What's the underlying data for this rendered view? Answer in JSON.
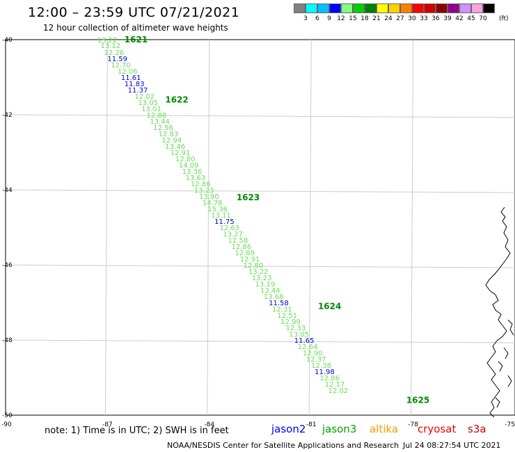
{
  "header": {
    "title": "12:00 – 23:59 UTC 07/21/2021",
    "subtitle": "12 hour collection of altimeter wave heights"
  },
  "colorbar": {
    "labels": [
      "3",
      "6",
      "9",
      "12",
      "15",
      "18",
      "21",
      "24",
      "27",
      "30",
      "33",
      "36",
      "39",
      "42",
      "45",
      "70"
    ],
    "unit": "(ft)",
    "colors": [
      "#808080",
      "#00ffff",
      "#00c0ff",
      "#0000ff",
      "#80ff80",
      "#00d000",
      "#008000",
      "#ffff00",
      "#ffd000",
      "#ff8000",
      "#ff0000",
      "#d00000",
      "#900000",
      "#900090",
      "#d090ff",
      "#ffa0e0",
      "#000000"
    ]
  },
  "map": {
    "lat_labels": [
      "-40",
      "-42",
      "-44",
      "-46",
      "-48",
      "-50"
    ],
    "lon_labels": [
      "-90",
      "-87",
      "-84",
      "-81",
      "-78",
      "-75"
    ],
    "hour_labels": [
      {
        "text": "1621",
        "lat": -40.0,
        "lon": -86.5
      },
      {
        "text": "1622",
        "lat": -41.6,
        "lon": -85.3
      },
      {
        "text": "1623",
        "lat": -44.2,
        "lon": -83.2
      },
      {
        "text": "1624",
        "lat": -47.1,
        "lon": -80.8
      },
      {
        "text": "1625",
        "lat": -49.6,
        "lon": -78.2
      }
    ],
    "points": [
      {
        "v": "13.22",
        "lat": -40.0,
        "lon": -87.3,
        "c": "green"
      },
      {
        "v": "13.12",
        "lat": -40.15,
        "lon": -87.2,
        "c": "green"
      },
      {
        "v": "12.26",
        "lat": -40.33,
        "lon": -87.1,
        "c": "green"
      },
      {
        "v": "11.59",
        "lat": -40.5,
        "lon": -87.0,
        "c": "blue"
      },
      {
        "v": "12.70",
        "lat": -40.67,
        "lon": -86.9,
        "c": "green"
      },
      {
        "v": "12.06",
        "lat": -40.83,
        "lon": -86.7,
        "c": "green"
      },
      {
        "v": "11.61",
        "lat": -41.0,
        "lon": -86.6,
        "c": "blue"
      },
      {
        "v": "11.83",
        "lat": -41.17,
        "lon": -86.5,
        "c": "blue"
      },
      {
        "v": "11.37",
        "lat": -41.33,
        "lon": -86.4,
        "c": "blue"
      },
      {
        "v": "12.02",
        "lat": -41.5,
        "lon": -86.2,
        "c": "green"
      },
      {
        "v": "13.05",
        "lat": -41.67,
        "lon": -86.1,
        "c": "green"
      },
      {
        "v": "13.01",
        "lat": -41.83,
        "lon": -86.0,
        "c": "green"
      },
      {
        "v": "12.88",
        "lat": -42.0,
        "lon": -85.85,
        "c": "green"
      },
      {
        "v": "13.44",
        "lat": -42.17,
        "lon": -85.75,
        "c": "green"
      },
      {
        "v": "12.56",
        "lat": -42.33,
        "lon": -85.65,
        "c": "green"
      },
      {
        "v": "12.83",
        "lat": -42.5,
        "lon": -85.5,
        "c": "green"
      },
      {
        "v": "12.94",
        "lat": -42.67,
        "lon": -85.4,
        "c": "green"
      },
      {
        "v": "13.46",
        "lat": -42.83,
        "lon": -85.3,
        "c": "green"
      },
      {
        "v": "12.91",
        "lat": -43.0,
        "lon": -85.15,
        "c": "green"
      },
      {
        "v": "12.80",
        "lat": -43.17,
        "lon": -85.0,
        "c": "green"
      },
      {
        "v": "14.09",
        "lat": -43.33,
        "lon": -84.9,
        "c": "green"
      },
      {
        "v": "13.36",
        "lat": -43.5,
        "lon": -84.8,
        "c": "green"
      },
      {
        "v": "13.63",
        "lat": -43.67,
        "lon": -84.7,
        "c": "green"
      },
      {
        "v": "12.86",
        "lat": -43.83,
        "lon": -84.55,
        "c": "green"
      },
      {
        "v": "13.23",
        "lat": -44.0,
        "lon": -84.45,
        "c": "green"
      },
      {
        "v": "13.90",
        "lat": -44.17,
        "lon": -84.3,
        "c": "green"
      },
      {
        "v": "14.78",
        "lat": -44.33,
        "lon": -84.2,
        "c": "green"
      },
      {
        "v": "15.36",
        "lat": -44.5,
        "lon": -84.05,
        "c": "green"
      },
      {
        "v": "13.11",
        "lat": -44.67,
        "lon": -83.95,
        "c": "green"
      },
      {
        "v": "11.75",
        "lat": -44.83,
        "lon": -83.85,
        "c": "blue"
      },
      {
        "v": "12.63",
        "lat": -45.0,
        "lon": -83.7,
        "c": "green"
      },
      {
        "v": "13.27",
        "lat": -45.17,
        "lon": -83.6,
        "c": "green"
      },
      {
        "v": "12.58",
        "lat": -45.33,
        "lon": -83.45,
        "c": "green"
      },
      {
        "v": "12.86",
        "lat": -45.5,
        "lon": -83.35,
        "c": "green"
      },
      {
        "v": "12.69",
        "lat": -45.67,
        "lon": -83.25,
        "c": "green"
      },
      {
        "v": "12.91",
        "lat": -45.83,
        "lon": -83.1,
        "c": "green"
      },
      {
        "v": "12.80",
        "lat": -46.0,
        "lon": -83.0,
        "c": "green"
      },
      {
        "v": "13.22",
        "lat": -46.17,
        "lon": -82.85,
        "c": "green"
      },
      {
        "v": "13.23",
        "lat": -46.33,
        "lon": -82.75,
        "c": "green"
      },
      {
        "v": "13.19",
        "lat": -46.5,
        "lon": -82.65,
        "c": "green"
      },
      {
        "v": "13.44",
        "lat": -46.67,
        "lon": -82.5,
        "c": "green"
      },
      {
        "v": "13.68",
        "lat": -46.83,
        "lon": -82.4,
        "c": "green"
      },
      {
        "v": "11.58",
        "lat": -47.0,
        "lon": -82.25,
        "c": "blue"
      },
      {
        "v": "12.31",
        "lat": -47.17,
        "lon": -82.15,
        "c": "green"
      },
      {
        "v": "12.51",
        "lat": -47.33,
        "lon": -82.0,
        "c": "green"
      },
      {
        "v": "12.99",
        "lat": -47.5,
        "lon": -81.9,
        "c": "green"
      },
      {
        "v": "12.33",
        "lat": -47.67,
        "lon": -81.75,
        "c": "green"
      },
      {
        "v": "13.05",
        "lat": -47.83,
        "lon": -81.65,
        "c": "green"
      },
      {
        "v": "11.65",
        "lat": -48.0,
        "lon": -81.5,
        "c": "blue"
      },
      {
        "v": "12.64",
        "lat": -48.17,
        "lon": -81.4,
        "c": "green"
      },
      {
        "v": "12.90",
        "lat": -48.33,
        "lon": -81.25,
        "c": "green"
      },
      {
        "v": "12.37",
        "lat": -48.5,
        "lon": -81.15,
        "c": "green"
      },
      {
        "v": "12.38",
        "lat": -48.67,
        "lon": -81.0,
        "c": "green"
      },
      {
        "v": "11.98",
        "lat": -48.83,
        "lon": -80.9,
        "c": "blue"
      },
      {
        "v": "12.86",
        "lat": -49.0,
        "lon": -80.75,
        "c": "green"
      },
      {
        "v": "12.17",
        "lat": -49.17,
        "lon": -80.6,
        "c": "green"
      },
      {
        "v": "12.02",
        "lat": -49.33,
        "lon": -80.5,
        "c": "green"
      }
    ]
  },
  "footer": {
    "note": "note: 1) Time is in UTC; 2) SWH is in feet",
    "satellites": [
      {
        "name": "jason2",
        "color": "#0000ee"
      },
      {
        "name": "jason3",
        "color": "#00a000"
      },
      {
        "name": "altika",
        "color": "#ff9900"
      },
      {
        "name": "cryosat",
        "color": "#ee0000"
      },
      {
        "name": "s3a",
        "color": "#cc0000"
      }
    ],
    "credit": "NOAA/NESDIS Center for Satellite Applications and Research",
    "timestamp": "Jul 24 08:27:54 UTC 2021"
  }
}
